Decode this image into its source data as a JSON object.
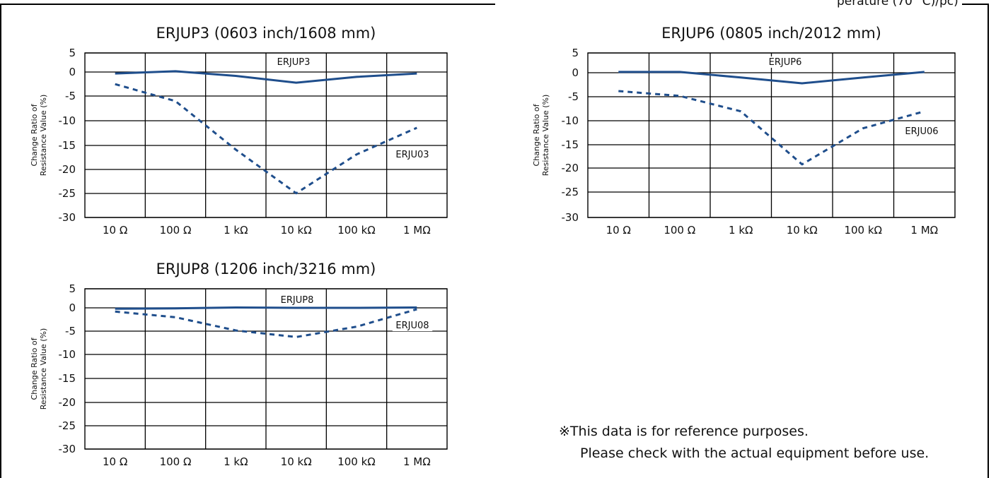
{
  "top_caption": "perature (70 °C)/pc)",
  "note": {
    "line1": "※This data is for reference purposes.",
    "line2": "Please check with the actual equipment before use."
  },
  "colors": {
    "series": "#1f4e8c",
    "grid": "#000000"
  },
  "chart_data": [
    {
      "type": "line",
      "title": "ERJUP3 (0603 inch/1608 mm)",
      "ylabel": "Change Ratio of\nResistance Value (%)",
      "categories": [
        "10 Ω",
        "100 Ω",
        "1 kΩ",
        "10 kΩ",
        "100 kΩ",
        "1 MΩ"
      ],
      "ylim": [
        -30,
        5
      ],
      "yticks": [
        "5",
        "0",
        "-5",
        "-10",
        "-15",
        "-20",
        "-25",
        "-30"
      ],
      "series": [
        {
          "name": "ERJUP3",
          "style": "solid",
          "points": [
            [
              0,
              -0.3
            ],
            [
              1,
              0.2
            ],
            [
              2,
              -0.8
            ],
            [
              3,
              -2.2
            ],
            [
              4,
              -1.0
            ],
            [
              5,
              -0.3
            ]
          ]
        },
        {
          "name": "ERJU03",
          "style": "dashed",
          "points": [
            [
              0,
              -2.5
            ],
            [
              1,
              -6.0
            ],
            [
              2,
              -16.0
            ],
            [
              3,
              -25.0
            ],
            [
              4,
              -17.0
            ],
            [
              5,
              -11.5
            ]
          ]
        }
      ],
      "grid": true
    },
    {
      "type": "line",
      "title": "ERJUP6 (0805 inch/2012 mm)",
      "ylabel": "Change Ratio of\nResistance Value (%)",
      "categories": [
        "10 Ω",
        "100 Ω",
        "1 kΩ",
        "10 kΩ",
        "100 kΩ",
        "1 MΩ"
      ],
      "ylim": [
        -30,
        5
      ],
      "yticks": [
        "5",
        "0",
        "-5",
        "-10",
        "-15",
        "-20",
        "-25",
        "-30"
      ],
      "series": [
        {
          "name": "ERJUP6",
          "style": "solid",
          "points": [
            [
              0,
              0.2
            ],
            [
              1,
              0.2
            ],
            [
              2,
              -1.0
            ],
            [
              3,
              -2.2
            ],
            [
              4,
              -1.0
            ],
            [
              5,
              0.2
            ]
          ]
        },
        {
          "name": "ERJU06",
          "style": "dashed",
          "points": [
            [
              0,
              -3.8
            ],
            [
              1,
              -4.8
            ],
            [
              2,
              -8.0
            ],
            [
              3,
              -19.0
            ],
            [
              4,
              -11.5
            ],
            [
              5,
              -8.0
            ]
          ]
        }
      ],
      "grid": true
    },
    {
      "type": "line",
      "title": "ERJUP8 (1206 inch/3216 mm)",
      "ylabel": "Change Ratio of\nResistance Value (%)",
      "categories": [
        "10 Ω",
        "100 Ω",
        "1 kΩ",
        "10 kΩ",
        "100 kΩ",
        "1 MΩ"
      ],
      "ylim": [
        -30,
        5
      ],
      "yticks": [
        "5",
        "0",
        "-5",
        "-10",
        "-15",
        "-20",
        "-25",
        "-30"
      ],
      "series": [
        {
          "name": "ERJUP8",
          "style": "solid",
          "points": [
            [
              0,
              -0.2
            ],
            [
              1,
              -0.1
            ],
            [
              2,
              0.1
            ],
            [
              3,
              0.0
            ],
            [
              4,
              0.0
            ],
            [
              5,
              0.1
            ]
          ]
        },
        {
          "name": "ERJU08",
          "style": "dashed",
          "points": [
            [
              0,
              -0.8
            ],
            [
              1,
              -2.0
            ],
            [
              2,
              -4.8
            ],
            [
              3,
              -6.2
            ],
            [
              4,
              -4.0
            ],
            [
              5,
              -0.3
            ]
          ]
        }
      ],
      "grid": true
    }
  ]
}
